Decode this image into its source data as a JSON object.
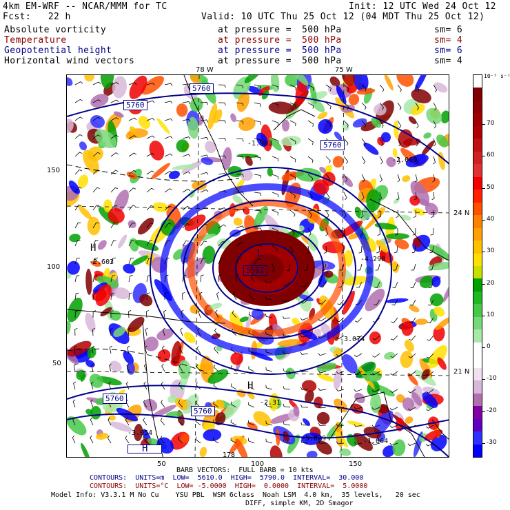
{
  "header": {
    "line1_left": "4km EM-WRF -- NCAR/MMM for TC",
    "line1_right": "Init: 12 UTC Wed 24 Oct 12",
    "line2_left": "Fcst:   22 h",
    "line2_right": "Valid: 10 UTC Thu 25 Oct 12 (04 MDT Thu 25 Oct 12)"
  },
  "fields": [
    {
      "name": "Absolute vorticity",
      "at": "at pressure =",
      "value": "500 hPa",
      "sm": "sm= 6",
      "color": "#000000"
    },
    {
      "name": "Temperature",
      "at": "at pressure =",
      "value": "500 hPa",
      "sm": "sm= 4",
      "color": "#8b0000"
    },
    {
      "name": "Geopotential height",
      "at": "at pressure =",
      "value": "500 hPa",
      "sm": "sm= 6",
      "color": "#00008b"
    },
    {
      "name": "Horizontal wind vectors",
      "at": "at pressure =",
      "value": "500 hPa",
      "sm": "sm= 4",
      "color": "#000000"
    }
  ],
  "axes": {
    "lon_top": [
      "78 W",
      "75 W"
    ],
    "lat_right": [
      "24 N",
      "21 N"
    ],
    "y_left": [
      "150",
      "100",
      "50"
    ],
    "x_bottom": [
      "50",
      "100",
      "150"
    ]
  },
  "colorbar": {
    "unit": "10⁻⁵ s⁻¹",
    "labels": [
      "70",
      "60",
      "50",
      "40",
      "30",
      "20",
      "10",
      "0",
      "-10",
      "-20",
      "-30"
    ],
    "colors": [
      "#ffffff",
      "#7f0000",
      "#8f0000",
      "#a00000",
      "#b00000",
      "#c01010",
      "#d02020",
      "#e03030",
      "#f00000",
      "#ff2000",
      "#ff5000",
      "#ff8000",
      "#ffa000",
      "#ffc000",
      "#ffe000",
      "#c8e000",
      "#00a000",
      "#20b820",
      "#48c848",
      "#78d878",
      "#a8e8a8",
      "#ffffff",
      "#ffffff",
      "#f0e0f0",
      "#d8b8d8",
      "#b070b0",
      "#8000a0",
      "#6000c0",
      "#3030ff",
      "#0000ff"
    ]
  },
  "map_labels": {
    "height_boxes": [
      "5760",
      "5760",
      "5760",
      "5760",
      "5760",
      "5597"
    ],
    "extrema_values": [
      "-1.983",
      "-2.069",
      "-2.603",
      "-4.298",
      "-3.074",
      "-3.054",
      "-5.829",
      "-1.064",
      "-2.31"
    ],
    "letters": [
      "L",
      "H",
      "H",
      "H"
    ],
    "bottom_number": "178"
  },
  "footer": {
    "barb": "BARB VECTORS:  FULL BARB = 10 kts",
    "contours1": {
      "label": "CONTOURS:",
      "units": "UNITS=m",
      "low": "LOW=  5610.0",
      "high": "HIGH=  5790.0",
      "interval": "INTERVAL=  30.000"
    },
    "contours2": {
      "label": "CONTOURS:",
      "units": "UNITS=°C",
      "low": "LOW= -5.0000",
      "high": "HIGH=  0.0000",
      "interval": "INTERVAL=  5.0000"
    },
    "model1": "Model Info: V3.3.1 M No Cu    YSU PBL  WSM 6class  Noah LSM  4.0 km,  35 levels,   20 sec",
    "model2": "DIFF, simple KM, 2D Smagor"
  }
}
